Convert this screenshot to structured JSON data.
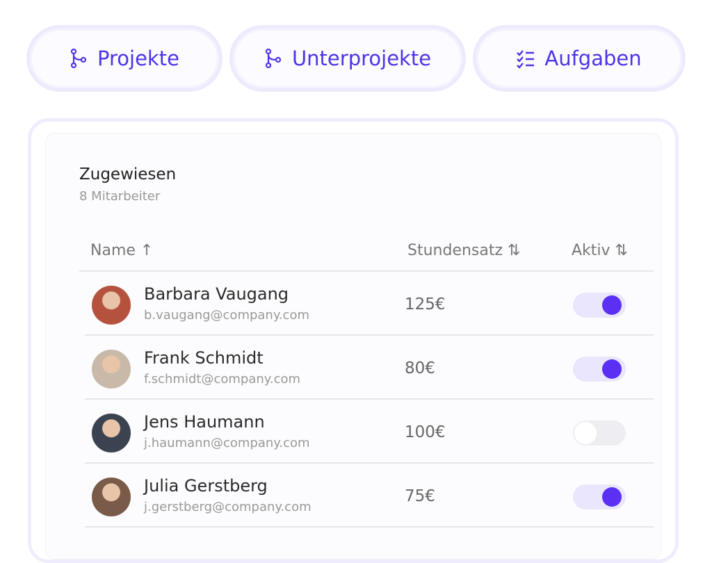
{
  "tabs": [
    {
      "label": "Projekte",
      "icon": "branch-icon"
    },
    {
      "label": "Unterprojekte",
      "icon": "branch-icon"
    },
    {
      "label": "Aufgaben",
      "icon": "checklist-icon"
    }
  ],
  "card": {
    "title": "Zugewiesen",
    "subtitle": "8 Mitarbeiter"
  },
  "columns": {
    "name": "Name ↑",
    "rate": "Stundensatz ⇅",
    "active": "Aktiv ⇅"
  },
  "rows": [
    {
      "name": "Barbara Vaugang",
      "email": "b.vaugang@company.com",
      "rate": "125€",
      "active": true
    },
    {
      "name": "Frank Schmidt",
      "email": "f.schmidt@company.com",
      "rate": "80€",
      "active": true
    },
    {
      "name": "Jens Haumann",
      "email": "j.haumann@company.com",
      "rate": "100€",
      "active": false
    },
    {
      "name": "Julia Gerstberg",
      "email": "j.gerstberg@company.com",
      "rate": "75€",
      "active": true
    }
  ],
  "colors": {
    "accent": "#5a31f4",
    "tab_text": "#4b35e8"
  }
}
